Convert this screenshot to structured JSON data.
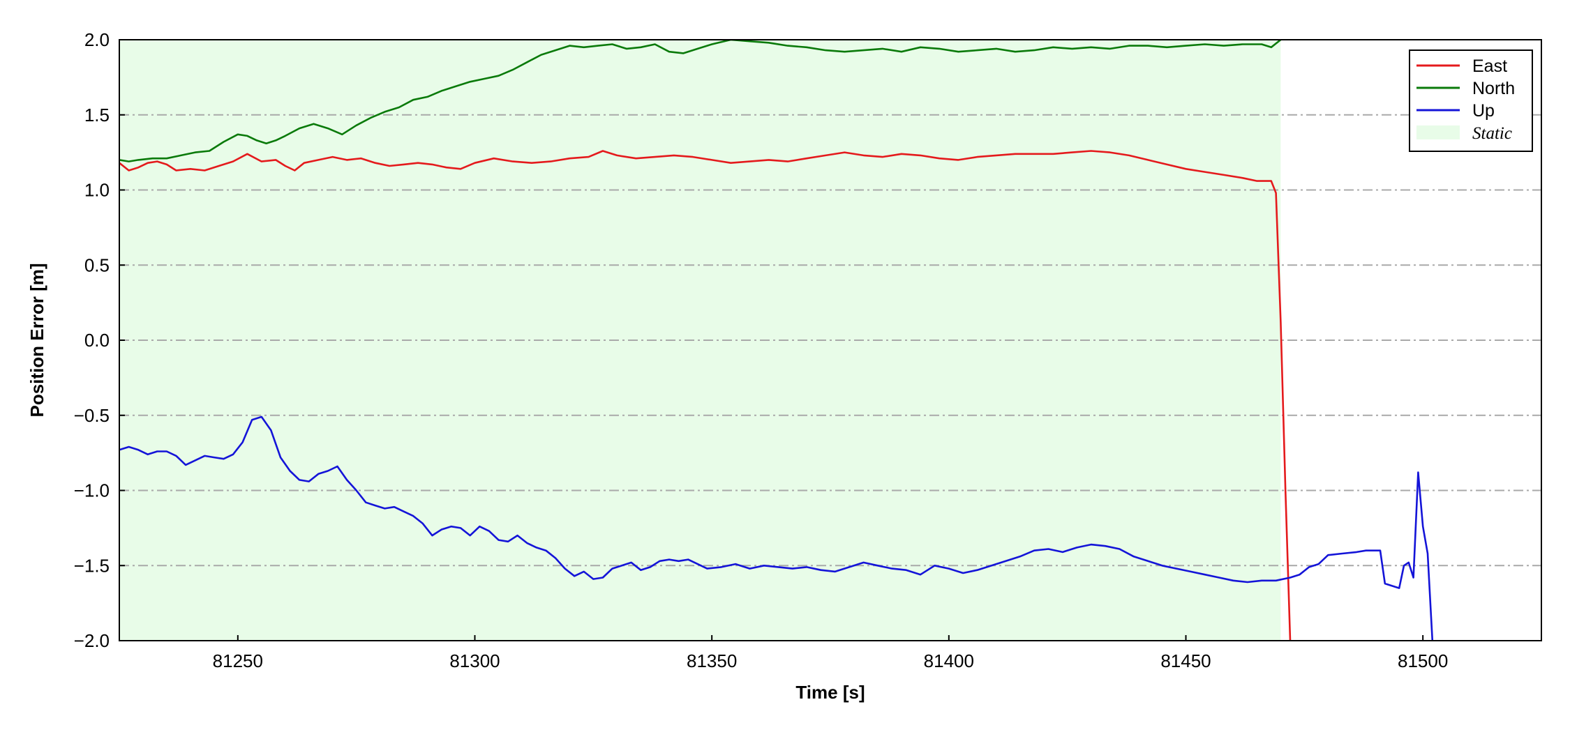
{
  "chart_data": {
    "type": "line",
    "title": "",
    "xlabel": "Time [s]",
    "ylabel": "Position Error [m]",
    "xlim": [
      81225,
      81525
    ],
    "ylim": [
      -2.0,
      2.0
    ],
    "x_ticks": [
      81250,
      81300,
      81350,
      81400,
      81450,
      81500
    ],
    "x_tick_labels": [
      "81250",
      "81300",
      "81350",
      "81400",
      "81450",
      "81500"
    ],
    "y_ticks": [
      -2.0,
      -1.5,
      -1.0,
      -0.5,
      0.0,
      0.5,
      1.0,
      1.5,
      2.0
    ],
    "y_tick_labels": [
      "−2.0",
      "−1.5",
      "−1.0",
      "−0.5",
      "0.0",
      "0.5",
      "1.0",
      "1.5",
      "2.0"
    ],
    "grid": "horizontal dash-dot",
    "legend_position": "top-right",
    "shaded_regions": [
      {
        "name": "Static",
        "x_start": 81225,
        "x_end": 81470,
        "color": "#e8fce8"
      }
    ],
    "series": [
      {
        "name": "East",
        "color": "#e41a1c",
        "points": [
          [
            81225,
            1.18
          ],
          [
            81227,
            1.13
          ],
          [
            81229,
            1.15
          ],
          [
            81231,
            1.18
          ],
          [
            81233,
            1.19
          ],
          [
            81235,
            1.17
          ],
          [
            81237,
            1.13
          ],
          [
            81240,
            1.14
          ],
          [
            81243,
            1.13
          ],
          [
            81246,
            1.16
          ],
          [
            81249,
            1.19
          ],
          [
            81252,
            1.24
          ],
          [
            81255,
            1.19
          ],
          [
            81258,
            1.2
          ],
          [
            81260,
            1.16
          ],
          [
            81262,
            1.13
          ],
          [
            81264,
            1.18
          ],
          [
            81267,
            1.2
          ],
          [
            81270,
            1.22
          ],
          [
            81273,
            1.2
          ],
          [
            81276,
            1.21
          ],
          [
            81279,
            1.18
          ],
          [
            81282,
            1.16
          ],
          [
            81285,
            1.17
          ],
          [
            81288,
            1.18
          ],
          [
            81291,
            1.17
          ],
          [
            81294,
            1.15
          ],
          [
            81297,
            1.14
          ],
          [
            81300,
            1.18
          ],
          [
            81304,
            1.21
          ],
          [
            81308,
            1.19
          ],
          [
            81312,
            1.18
          ],
          [
            81316,
            1.19
          ],
          [
            81320,
            1.21
          ],
          [
            81324,
            1.22
          ],
          [
            81327,
            1.26
          ],
          [
            81330,
            1.23
          ],
          [
            81334,
            1.21
          ],
          [
            81338,
            1.22
          ],
          [
            81342,
            1.23
          ],
          [
            81346,
            1.22
          ],
          [
            81350,
            1.2
          ],
          [
            81354,
            1.18
          ],
          [
            81358,
            1.19
          ],
          [
            81362,
            1.2
          ],
          [
            81366,
            1.19
          ],
          [
            81370,
            1.21
          ],
          [
            81374,
            1.23
          ],
          [
            81378,
            1.25
          ],
          [
            81382,
            1.23
          ],
          [
            81386,
            1.22
          ],
          [
            81390,
            1.24
          ],
          [
            81394,
            1.23
          ],
          [
            81398,
            1.21
          ],
          [
            81402,
            1.2
          ],
          [
            81406,
            1.22
          ],
          [
            81410,
            1.23
          ],
          [
            81414,
            1.24
          ],
          [
            81418,
            1.24
          ],
          [
            81422,
            1.24
          ],
          [
            81426,
            1.25
          ],
          [
            81430,
            1.26
          ],
          [
            81434,
            1.25
          ],
          [
            81438,
            1.23
          ],
          [
            81442,
            1.2
          ],
          [
            81446,
            1.17
          ],
          [
            81450,
            1.14
          ],
          [
            81454,
            1.12
          ],
          [
            81458,
            1.1
          ],
          [
            81462,
            1.08
          ],
          [
            81465,
            1.06
          ],
          [
            81468,
            1.06
          ],
          [
            81469,
            0.98
          ],
          [
            81470,
            0.12
          ],
          [
            81471,
            -1.0
          ],
          [
            81472,
            -2.0
          ]
        ]
      },
      {
        "name": "North",
        "color": "#0a7a0a",
        "points": [
          [
            81225,
            1.2
          ],
          [
            81227,
            1.19
          ],
          [
            81229,
            1.2
          ],
          [
            81232,
            1.21
          ],
          [
            81235,
            1.21
          ],
          [
            81238,
            1.23
          ],
          [
            81241,
            1.25
          ],
          [
            81244,
            1.26
          ],
          [
            81247,
            1.32
          ],
          [
            81250,
            1.37
          ],
          [
            81252,
            1.36
          ],
          [
            81254,
            1.33
          ],
          [
            81256,
            1.31
          ],
          [
            81258,
            1.33
          ],
          [
            81260,
            1.36
          ],
          [
            81263,
            1.41
          ],
          [
            81266,
            1.44
          ],
          [
            81269,
            1.41
          ],
          [
            81272,
            1.37
          ],
          [
            81275,
            1.43
          ],
          [
            81278,
            1.48
          ],
          [
            81281,
            1.52
          ],
          [
            81284,
            1.55
          ],
          [
            81287,
            1.6
          ],
          [
            81290,
            1.62
          ],
          [
            81293,
            1.66
          ],
          [
            81296,
            1.69
          ],
          [
            81299,
            1.72
          ],
          [
            81302,
            1.74
          ],
          [
            81305,
            1.76
          ],
          [
            81308,
            1.8
          ],
          [
            81311,
            1.85
          ],
          [
            81314,
            1.9
          ],
          [
            81317,
            1.93
          ],
          [
            81320,
            1.96
          ],
          [
            81323,
            1.95
          ],
          [
            81326,
            1.96
          ],
          [
            81329,
            1.97
          ],
          [
            81332,
            1.94
          ],
          [
            81335,
            1.95
          ],
          [
            81338,
            1.97
          ],
          [
            81341,
            1.92
          ],
          [
            81344,
            1.91
          ],
          [
            81347,
            1.94
          ],
          [
            81350,
            1.97
          ],
          [
            81354,
            2.0
          ],
          [
            81358,
            1.99
          ],
          [
            81362,
            1.98
          ],
          [
            81366,
            1.96
          ],
          [
            81370,
            1.95
          ],
          [
            81374,
            1.93
          ],
          [
            81378,
            1.92
          ],
          [
            81382,
            1.93
          ],
          [
            81386,
            1.94
          ],
          [
            81390,
            1.92
          ],
          [
            81394,
            1.95
          ],
          [
            81398,
            1.94
          ],
          [
            81402,
            1.92
          ],
          [
            81406,
            1.93
          ],
          [
            81410,
            1.94
          ],
          [
            81414,
            1.92
          ],
          [
            81418,
            1.93
          ],
          [
            81422,
            1.95
          ],
          [
            81426,
            1.94
          ],
          [
            81430,
            1.95
          ],
          [
            81434,
            1.94
          ],
          [
            81438,
            1.96
          ],
          [
            81442,
            1.96
          ],
          [
            81446,
            1.95
          ],
          [
            81450,
            1.96
          ],
          [
            81454,
            1.97
          ],
          [
            81458,
            1.96
          ],
          [
            81462,
            1.97
          ],
          [
            81466,
            1.97
          ],
          [
            81468,
            1.95
          ],
          [
            81470,
            2.0
          ]
        ]
      },
      {
        "name": "Up",
        "color": "#1414d8",
        "points": [
          [
            81225,
            -0.73
          ],
          [
            81227,
            -0.71
          ],
          [
            81229,
            -0.73
          ],
          [
            81231,
            -0.76
          ],
          [
            81233,
            -0.74
          ],
          [
            81235,
            -0.74
          ],
          [
            81237,
            -0.77
          ],
          [
            81239,
            -0.83
          ],
          [
            81241,
            -0.8
          ],
          [
            81243,
            -0.77
          ],
          [
            81245,
            -0.78
          ],
          [
            81247,
            -0.79
          ],
          [
            81249,
            -0.76
          ],
          [
            81251,
            -0.68
          ],
          [
            81253,
            -0.53
          ],
          [
            81255,
            -0.51
          ],
          [
            81257,
            -0.6
          ],
          [
            81259,
            -0.78
          ],
          [
            81261,
            -0.87
          ],
          [
            81263,
            -0.93
          ],
          [
            81265,
            -0.94
          ],
          [
            81267,
            -0.89
          ],
          [
            81269,
            -0.87
          ],
          [
            81271,
            -0.84
          ],
          [
            81273,
            -0.93
          ],
          [
            81275,
            -1.0
          ],
          [
            81277,
            -1.08
          ],
          [
            81279,
            -1.1
          ],
          [
            81281,
            -1.12
          ],
          [
            81283,
            -1.11
          ],
          [
            81285,
            -1.14
          ],
          [
            81287,
            -1.17
          ],
          [
            81289,
            -1.22
          ],
          [
            81291,
            -1.3
          ],
          [
            81293,
            -1.26
          ],
          [
            81295,
            -1.24
          ],
          [
            81297,
            -1.25
          ],
          [
            81299,
            -1.3
          ],
          [
            81301,
            -1.24
          ],
          [
            81303,
            -1.27
          ],
          [
            81305,
            -1.33
          ],
          [
            81307,
            -1.34
          ],
          [
            81309,
            -1.3
          ],
          [
            81311,
            -1.35
          ],
          [
            81313,
            -1.38
          ],
          [
            81315,
            -1.4
          ],
          [
            81317,
            -1.45
          ],
          [
            81319,
            -1.52
          ],
          [
            81321,
            -1.57
          ],
          [
            81323,
            -1.54
          ],
          [
            81325,
            -1.59
          ],
          [
            81327,
            -1.58
          ],
          [
            81329,
            -1.52
          ],
          [
            81331,
            -1.5
          ],
          [
            81333,
            -1.48
          ],
          [
            81335,
            -1.53
          ],
          [
            81337,
            -1.51
          ],
          [
            81339,
            -1.47
          ],
          [
            81341,
            -1.46
          ],
          [
            81343,
            -1.47
          ],
          [
            81345,
            -1.46
          ],
          [
            81347,
            -1.49
          ],
          [
            81349,
            -1.52
          ],
          [
            81352,
            -1.51
          ],
          [
            81355,
            -1.49
          ],
          [
            81358,
            -1.52
          ],
          [
            81361,
            -1.5
          ],
          [
            81364,
            -1.51
          ],
          [
            81367,
            -1.52
          ],
          [
            81370,
            -1.51
          ],
          [
            81373,
            -1.53
          ],
          [
            81376,
            -1.54
          ],
          [
            81379,
            -1.51
          ],
          [
            81382,
            -1.48
          ],
          [
            81385,
            -1.5
          ],
          [
            81388,
            -1.52
          ],
          [
            81391,
            -1.53
          ],
          [
            81394,
            -1.56
          ],
          [
            81397,
            -1.5
          ],
          [
            81400,
            -1.52
          ],
          [
            81403,
            -1.55
          ],
          [
            81406,
            -1.53
          ],
          [
            81409,
            -1.5
          ],
          [
            81412,
            -1.47
          ],
          [
            81415,
            -1.44
          ],
          [
            81418,
            -1.4
          ],
          [
            81421,
            -1.39
          ],
          [
            81424,
            -1.41
          ],
          [
            81427,
            -1.38
          ],
          [
            81430,
            -1.36
          ],
          [
            81433,
            -1.37
          ],
          [
            81436,
            -1.39
          ],
          [
            81439,
            -1.44
          ],
          [
            81442,
            -1.47
          ],
          [
            81445,
            -1.5
          ],
          [
            81448,
            -1.52
          ],
          [
            81451,
            -1.54
          ],
          [
            81454,
            -1.56
          ],
          [
            81457,
            -1.58
          ],
          [
            81460,
            -1.6
          ],
          [
            81463,
            -1.61
          ],
          [
            81466,
            -1.6
          ],
          [
            81469,
            -1.6
          ],
          [
            81472,
            -1.58
          ],
          [
            81474,
            -1.56
          ],
          [
            81476,
            -1.51
          ],
          [
            81478,
            -1.49
          ],
          [
            81480,
            -1.43
          ],
          [
            81483,
            -1.42
          ],
          [
            81486,
            -1.41
          ],
          [
            81488,
            -1.4
          ],
          [
            81491,
            -1.4
          ],
          [
            81492,
            -1.62
          ],
          [
            81495,
            -1.65
          ],
          [
            81496,
            -1.5
          ],
          [
            81497,
            -1.48
          ],
          [
            81498,
            -1.58
          ],
          [
            81499,
            -0.88
          ],
          [
            81500,
            -1.24
          ],
          [
            81501,
            -1.42
          ],
          [
            81502,
            -2.0
          ]
        ]
      }
    ]
  },
  "legend": {
    "items": [
      {
        "label": "East",
        "color": "#e41a1c",
        "kind": "line"
      },
      {
        "label": "North",
        "color": "#0a7a0a",
        "kind": "line"
      },
      {
        "label": "Up",
        "color": "#1414d8",
        "kind": "line"
      },
      {
        "label": "Static",
        "color": "#e8fce8",
        "kind": "patch"
      }
    ]
  }
}
